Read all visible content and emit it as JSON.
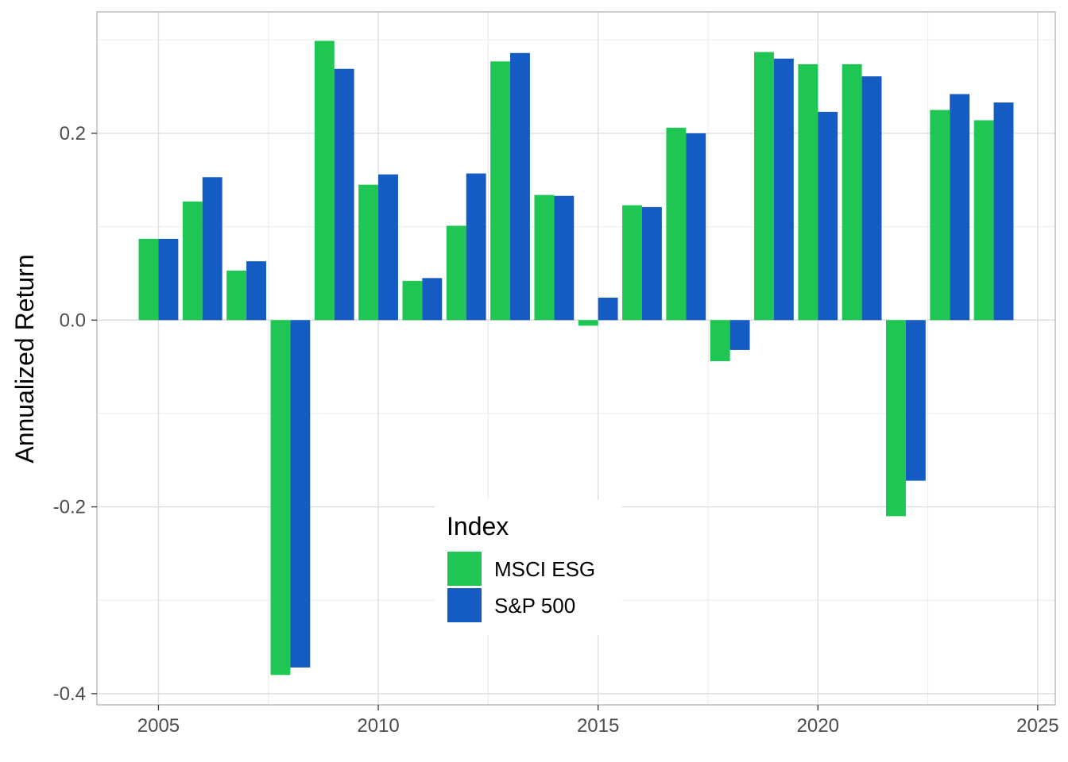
{
  "chart_data": {
    "type": "bar",
    "title": "",
    "xlabel": "",
    "ylabel": "Annualized Return",
    "xlim": [
      2003.6,
      2025.4
    ],
    "ylim": [
      -0.412,
      0.33
    ],
    "x_ticks": [
      2005,
      2010,
      2015,
      2020,
      2025
    ],
    "x_tick_labels": [
      "2005",
      "2010",
      "2015",
      "2020",
      "2025"
    ],
    "y_ticks": [
      -0.4,
      -0.2,
      0.0,
      0.2
    ],
    "y_tick_labels": [
      "-0.4",
      "-0.2",
      "0.0",
      "0.2"
    ],
    "grid": true,
    "legend": {
      "title": "Index",
      "placement": "bottom-center"
    },
    "x": [
      2005,
      2006,
      2007,
      2008,
      2009,
      2010,
      2011,
      2012,
      2013,
      2014,
      2015,
      2016,
      2017,
      2018,
      2019,
      2020,
      2021,
      2022,
      2023,
      2024
    ],
    "series": [
      {
        "name": "MSCI ESG",
        "color": "#1fc653",
        "values": [
          0.087,
          0.127,
          0.053,
          -0.38,
          0.299,
          0.145,
          0.042,
          0.101,
          0.277,
          0.134,
          -0.006,
          0.123,
          0.206,
          -0.044,
          0.287,
          0.274,
          0.274,
          -0.21,
          0.225,
          0.214
        ]
      },
      {
        "name": "S&P 500",
        "color": "#145cc4",
        "values": [
          0.087,
          0.153,
          0.063,
          -0.372,
          0.269,
          0.156,
          0.045,
          0.157,
          0.286,
          0.133,
          0.024,
          0.121,
          0.2,
          -0.032,
          0.28,
          0.223,
          0.261,
          -0.172,
          0.242,
          0.233
        ]
      }
    ]
  }
}
